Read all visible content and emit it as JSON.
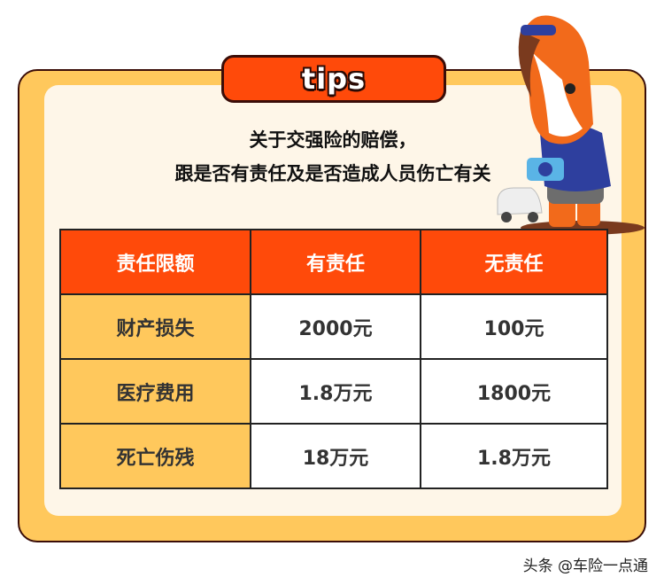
{
  "header": {
    "title": "tips"
  },
  "intro": {
    "line1": "关于交强险的赔偿，",
    "line2": "跟是否有责任及是否造成人员伤亡有关"
  },
  "table": {
    "headers": [
      "责任限额",
      "有责任",
      "无责任"
    ],
    "rows": [
      [
        "财产损失",
        "2000元",
        "100元"
      ],
      [
        "医疗费用",
        "1.8万元",
        "1800元"
      ],
      [
        "死亡伤残",
        "18万元",
        "1.8万元"
      ]
    ]
  },
  "watermark": "头条 @车险一点通",
  "colors": {
    "accent": "#FF4A0A",
    "card": "#FFC85C",
    "panel": "#FEF6E8"
  }
}
